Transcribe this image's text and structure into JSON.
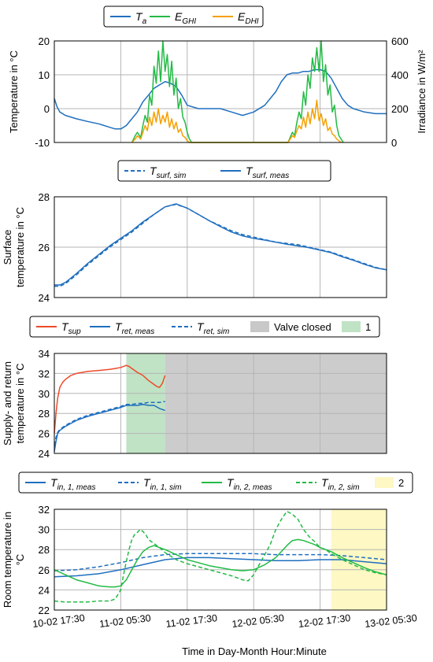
{
  "figure": {
    "xlabel": "Time in Day-Month Hour:Minute",
    "xticks": [
      "10-02 17:30",
      "11-02 05:30",
      "11-02 17:30",
      "12-02 05:30",
      "12-02 17:30",
      "13-02 05:30"
    ]
  },
  "chart_data": [
    {
      "type": "line",
      "ylabel": "Temperature in °C",
      "y2label": "Irradiance in W/m²",
      "ylim": [
        -10,
        20
      ],
      "yticks": [
        -10,
        0,
        10,
        20
      ],
      "y2lim": [
        0,
        600
      ],
      "y2ticks": [
        0,
        200,
        400,
        600
      ],
      "xlim": [
        0,
        60
      ],
      "legend_position": "top",
      "grid": true,
      "legend": [
        {
          "main": "T",
          "sub": "a",
          "color": "#1f6fbf",
          "dash": false
        },
        {
          "main": "E",
          "sub": "GHI",
          "color": "#22bb44",
          "dash": false
        },
        {
          "main": "E",
          "sub": "DHI",
          "color": "#f5a000",
          "dash": false
        }
      ],
      "series": [
        {
          "color": "#1f6fbf",
          "axis": "left",
          "dash": false,
          "x": [
            0,
            0.5,
            1,
            2,
            4,
            6,
            8,
            10,
            11,
            12,
            13,
            14,
            15,
            16,
            17,
            18,
            19,
            20,
            21,
            22,
            23,
            24,
            26,
            28,
            30,
            32,
            34,
            36,
            38,
            40,
            41,
            42,
            43,
            44,
            45,
            46,
            47,
            48,
            49,
            50,
            51,
            52,
            53,
            54,
            56,
            58,
            60
          ],
          "y": [
            3,
            0.5,
            -1,
            -2,
            -3,
            -3.8,
            -4.5,
            -5.5,
            -6,
            -6,
            -5,
            -3,
            -1,
            2,
            4,
            6,
            7,
            8,
            7.5,
            6.5,
            4,
            1,
            0,
            0,
            0,
            -1,
            -2,
            -1,
            1,
            5,
            8,
            10,
            10.5,
            10.5,
            11,
            11,
            11.5,
            11.5,
            11,
            9,
            6,
            3,
            1,
            0,
            -1,
            -1.5,
            -1.5
          ]
        },
        {
          "color": "#22bb44",
          "axis": "right",
          "dash": false,
          "x": [
            14,
            14.6,
            15,
            15.6,
            16,
            16.4,
            16.8,
            17.2,
            17.6,
            18,
            18.4,
            18.8,
            19.2,
            19.6,
            20,
            20.4,
            20.8,
            21.2,
            21.6,
            22,
            22.4,
            22.8,
            23.2,
            23.6,
            24,
            24.4,
            24.8,
            42.2,
            42.6,
            43,
            43.4,
            43.8,
            44.2,
            44.6,
            45,
            45.4,
            45.8,
            46.2,
            46.6,
            47,
            47.4,
            47.8,
            48.2,
            48.6,
            49,
            49.4,
            49.8,
            50.2,
            50.6,
            51,
            51.4,
            51.8,
            52.2
          ],
          "y": [
            0,
            40,
            60,
            30,
            100,
            160,
            120,
            280,
            220,
            450,
            350,
            540,
            360,
            600,
            420,
            520,
            330,
            480,
            280,
            380,
            200,
            260,
            150,
            120,
            60,
            20,
            0,
            0,
            30,
            60,
            40,
            120,
            180,
            140,
            300,
            220,
            400,
            320,
            500,
            420,
            560,
            420,
            600,
            360,
            460,
            280,
            340,
            180,
            220,
            100,
            40,
            20,
            0
          ]
        },
        {
          "color": "#f5a000",
          "axis": "right",
          "dash": false,
          "x": [
            14,
            14.6,
            15,
            15.6,
            16,
            16.4,
            16.8,
            17.2,
            17.6,
            18,
            18.4,
            18.8,
            19.2,
            19.6,
            20,
            20.4,
            20.8,
            21.2,
            21.6,
            22,
            22.4,
            22.8,
            23.2,
            23.6,
            24,
            24.4,
            42.2,
            42.6,
            43,
            43.4,
            43.8,
            44.2,
            44.6,
            45,
            45.4,
            45.8,
            46.2,
            46.6,
            47,
            47.4,
            47.8,
            48.2,
            48.6,
            49,
            49.4,
            49.8,
            50.2,
            50.6,
            51,
            51.4,
            51.8
          ],
          "y": [
            0,
            20,
            40,
            20,
            60,
            100,
            70,
            150,
            100,
            180,
            120,
            200,
            110,
            160,
            120,
            180,
            90,
            140,
            80,
            120,
            60,
            80,
            40,
            30,
            10,
            0,
            0,
            20,
            40,
            30,
            70,
            100,
            80,
            150,
            90,
            180,
            110,
            200,
            140,
            250,
            130,
            170,
            100,
            140,
            70,
            90,
            50,
            40,
            20,
            10,
            0
          ]
        }
      ]
    },
    {
      "type": "line",
      "ylabel": "Surface temperature in °C",
      "ylim": [
        24,
        28
      ],
      "yticks": [
        24,
        26,
        28
      ],
      "xlim": [
        0,
        60
      ],
      "legend_position": "top",
      "grid": true,
      "legend": [
        {
          "main": "T",
          "sub": "surf, sim",
          "color": "#1f6fbf",
          "dash": true
        },
        {
          "main": "T",
          "sub": "surf, meas",
          "color": "#1f6fbf",
          "dash": false
        }
      ],
      "series": [
        {
          "color": "#1f6fbf",
          "axis": "left",
          "dash": true,
          "x": [
            0,
            1,
            2,
            4,
            6,
            8,
            10,
            12,
            14,
            16,
            18,
            20,
            22,
            24,
            26,
            28,
            30,
            32,
            34,
            36,
            38,
            40,
            42,
            44,
            46,
            48,
            50,
            52,
            54,
            56,
            58,
            60
          ],
          "y": [
            24.45,
            24.45,
            24.55,
            24.9,
            25.3,
            25.65,
            26.0,
            26.3,
            26.6,
            26.95,
            27.3,
            27.6,
            27.7,
            27.55,
            27.3,
            27.05,
            26.85,
            26.65,
            26.5,
            26.4,
            26.3,
            26.2,
            26.15,
            26.1,
            26.0,
            25.9,
            25.8,
            25.65,
            25.5,
            25.35,
            25.2,
            25.1
          ]
        },
        {
          "color": "#1f6fbf",
          "axis": "left",
          "dash": false,
          "x": [
            0,
            1,
            2,
            4,
            6,
            8,
            10,
            12,
            14,
            16,
            18,
            20,
            22,
            24,
            26,
            28,
            30,
            32,
            34,
            36,
            38,
            40,
            42,
            44,
            46,
            48,
            50,
            52,
            54,
            56,
            58,
            60
          ],
          "y": [
            24.5,
            24.5,
            24.6,
            24.95,
            25.35,
            25.7,
            26.05,
            26.35,
            26.65,
            27.0,
            27.3,
            27.6,
            27.72,
            27.55,
            27.3,
            27.05,
            26.82,
            26.6,
            26.45,
            26.35,
            26.28,
            26.2,
            26.12,
            26.05,
            25.98,
            25.88,
            25.78,
            25.62,
            25.48,
            25.32,
            25.18,
            25.1
          ]
        }
      ]
    },
    {
      "type": "line",
      "ylabel": "Supply- and return temperature in °C",
      "ylim": [
        24,
        34
      ],
      "yticks": [
        24,
        26,
        28,
        30,
        32,
        34
      ],
      "xlim": [
        0,
        60
      ],
      "legend_position": "top",
      "grid": true,
      "shaded_regions": [
        {
          "label": "1",
          "x0": 13,
          "x1": 20,
          "color": "#bfe3c4"
        },
        {
          "label": "Valve closed",
          "x0": 20,
          "x1": 60,
          "color": "#cccccc"
        }
      ],
      "legend": [
        {
          "main": "T",
          "sub": "sup",
          "color": "#ee4a2a",
          "dash": false
        },
        {
          "main": "T",
          "sub": "ret, meas",
          "color": "#1f6fbf",
          "dash": false
        },
        {
          "main": "T",
          "sub": "ret, sim",
          "color": "#1f6fbf",
          "dash": true
        },
        {
          "main": "Valve closed",
          "sub": "",
          "color": "#c8c8c8",
          "swatch": true
        },
        {
          "main": "1",
          "sub": "",
          "color": "#bfe3c4",
          "swatch": true
        }
      ],
      "series": [
        {
          "color": "#ee4a2a",
          "axis": "left",
          "dash": false,
          "x": [
            0,
            0.3,
            0.6,
            1,
            1.5,
            2,
            3,
            4,
            6,
            8,
            10,
            11,
            12,
            13,
            13.5,
            14,
            15,
            16,
            17,
            18,
            18.5,
            19,
            19.5,
            20
          ],
          "y": [
            26,
            28,
            29.5,
            30.6,
            31.1,
            31.4,
            31.8,
            32,
            32.2,
            32.3,
            32.4,
            32.5,
            32.6,
            32.8,
            32.7,
            32.5,
            32.1,
            31.8,
            31.3,
            30.9,
            30.7,
            30.6,
            31,
            31.8
          ]
        },
        {
          "color": "#1f6fbf",
          "axis": "left",
          "dash": false,
          "x": [
            0,
            0.3,
            0.6,
            1,
            2,
            3,
            4,
            6,
            8,
            10,
            12,
            13,
            14,
            15,
            16,
            17,
            18,
            19,
            20
          ],
          "y": [
            24.2,
            25.2,
            26.0,
            26.3,
            26.7,
            27.0,
            27.3,
            27.7,
            28.0,
            28.3,
            28.6,
            28.8,
            28.8,
            28.8,
            28.9,
            28.8,
            28.8,
            28.5,
            28.3
          ]
        },
        {
          "color": "#1f6fbf",
          "axis": "left",
          "dash": true,
          "x": [
            0,
            0.3,
            0.6,
            1,
            2,
            3,
            4,
            6,
            8,
            10,
            12,
            13,
            14,
            15,
            16,
            17,
            18,
            19,
            20
          ],
          "y": [
            24.8,
            25.6,
            26.1,
            26.4,
            26.8,
            27.1,
            27.4,
            27.8,
            28.1,
            28.4,
            28.7,
            28.9,
            28.9,
            29.0,
            29.0,
            29.1,
            29.1,
            29.1,
            29.2
          ]
        }
      ]
    },
    {
      "type": "line",
      "ylabel": "Room temperature in °C",
      "ylim": [
        22,
        32
      ],
      "yticks": [
        22,
        24,
        26,
        28,
        30,
        32
      ],
      "xlim": [
        0,
        60
      ],
      "legend_position": "top",
      "grid": true,
      "shaded_regions": [
        {
          "label": "2",
          "x0": 50,
          "x1": 60,
          "color": "#fdf8c4"
        }
      ],
      "legend": [
        {
          "main": "T",
          "sub": "in, 1, meas",
          "color": "#1f6fbf",
          "dash": false
        },
        {
          "main": "T",
          "sub": "in, 1, sim",
          "color": "#1f6fbf",
          "dash": true
        },
        {
          "main": "T",
          "sub": "in, 2, meas",
          "color": "#22bb44",
          "dash": false
        },
        {
          "main": "T",
          "sub": "in, 2, sim",
          "color": "#22bb44",
          "dash": true
        },
        {
          "main": "2",
          "sub": "",
          "color": "#fdf8c4",
          "swatch": true
        }
      ],
      "series": [
        {
          "color": "#1f6fbf",
          "axis": "left",
          "dash": false,
          "x": [
            0,
            4,
            8,
            12,
            16,
            20,
            24,
            28,
            32,
            36,
            40,
            44,
            48,
            52,
            56,
            60
          ],
          "y": [
            25.3,
            25.4,
            25.6,
            26.0,
            26.5,
            27.0,
            27.2,
            27.2,
            27.1,
            27.0,
            26.9,
            26.9,
            27.0,
            27.0,
            26.8,
            26.6
          ]
        },
        {
          "color": "#1f6fbf",
          "axis": "left",
          "dash": true,
          "x": [
            0,
            4,
            8,
            12,
            16,
            20,
            24,
            28,
            32,
            36,
            40,
            44,
            48,
            52,
            56,
            60
          ],
          "y": [
            25.9,
            26.0,
            26.3,
            26.7,
            27.2,
            27.5,
            27.6,
            27.6,
            27.6,
            27.6,
            27.5,
            27.5,
            27.5,
            27.4,
            27.2,
            27.0
          ]
        },
        {
          "color": "#22bb44",
          "axis": "left",
          "dash": false,
          "x": [
            0,
            2,
            4,
            6,
            8,
            10,
            11,
            12,
            13,
            14,
            15,
            16,
            17,
            18,
            20,
            22,
            24,
            26,
            28,
            30,
            32,
            34,
            36,
            38,
            40,
            41,
            42,
            43,
            44,
            45,
            46,
            47,
            48,
            50,
            52,
            54,
            56,
            58,
            60
          ],
          "y": [
            26.0,
            25.5,
            25.0,
            24.7,
            24.4,
            24.3,
            24.3,
            24.4,
            25.0,
            26.0,
            27.0,
            27.8,
            28.2,
            28.4,
            28.0,
            27.5,
            27.0,
            26.7,
            26.4,
            26.2,
            26.0,
            25.9,
            26.0,
            26.5,
            27.2,
            27.8,
            28.4,
            28.9,
            29.0,
            28.9,
            28.7,
            28.5,
            28.2,
            27.8,
            27.2,
            26.7,
            26.2,
            25.8,
            25.5
          ]
        },
        {
          "color": "#22bb44",
          "axis": "left",
          "dash": true,
          "x": [
            0,
            2,
            4,
            6,
            8,
            10,
            11,
            12,
            12.5,
            13,
            13.5,
            14,
            14.5,
            15,
            15.5,
            16,
            16.5,
            17,
            17.5,
            18,
            19,
            20,
            22,
            24,
            26,
            28,
            30,
            32,
            34,
            35,
            36,
            37,
            38,
            39,
            40,
            41,
            42,
            43,
            44,
            45,
            46,
            47,
            48,
            49,
            50,
            52,
            54,
            56,
            58,
            60
          ],
          "y": [
            22.9,
            22.8,
            22.8,
            22.8,
            22.9,
            22.9,
            23.1,
            24,
            25.5,
            26.8,
            28,
            29,
            29.5,
            29.7,
            30,
            29.8,
            29.5,
            29,
            28.8,
            28.6,
            28.2,
            27.7,
            27,
            26.6,
            26.3,
            26,
            25.7,
            25.4,
            25,
            24.9,
            25.5,
            26.5,
            27.5,
            28.5,
            30,
            31,
            31.8,
            31.5,
            31,
            30,
            29.3,
            28.8,
            28.2,
            28,
            27.6,
            27,
            26.5,
            26,
            25.7,
            25.5
          ]
        }
      ]
    }
  ]
}
